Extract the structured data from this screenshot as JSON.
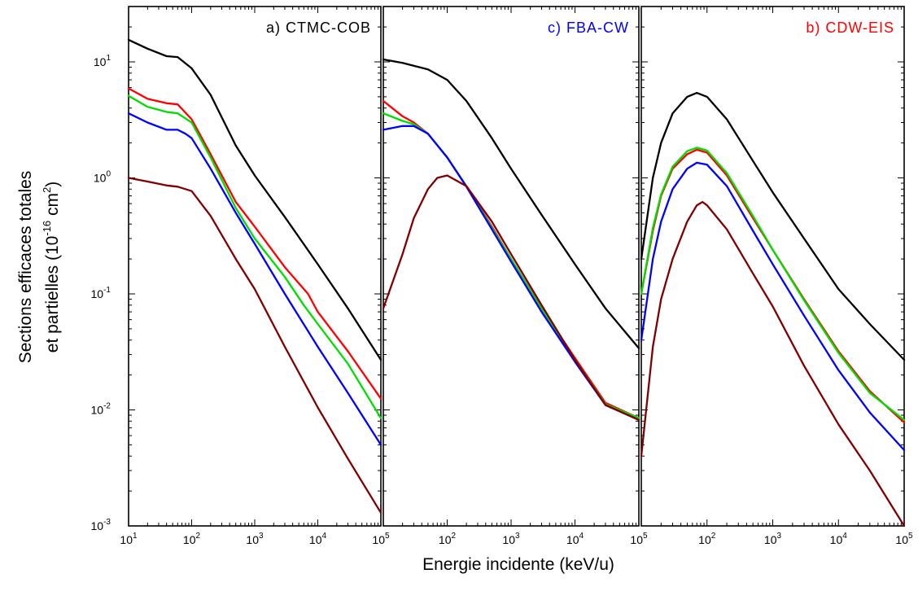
{
  "figure": {
    "xlabel": "Energie incidente (keV/u)",
    "ylabel_line1": "Sections efficaces totales",
    "ylabel_line2_prefix": "et partielles (10",
    "ylabel_line2_exp": "-16",
    "ylabel_line2_mid": " cm",
    "ylabel_line2_exp2": "2",
    "ylabel_line2_suffix": ")"
  },
  "chart_data": [
    {
      "type": "line",
      "title": "a) CTMC-COB",
      "title_color": "#000000",
      "x_scale": "log",
      "y_scale": "log",
      "xlim": [
        10,
        100000
      ],
      "ylim": [
        0.001,
        30
      ],
      "x_ticks": [
        {
          "base": "10",
          "exp": "1"
        },
        {
          "base": "10",
          "exp": "2"
        },
        {
          "base": "10",
          "exp": "3"
        },
        {
          "base": "10",
          "exp": "4"
        },
        {
          "base": "10",
          "exp": "5"
        }
      ],
      "y_ticks": [
        {
          "base": "10",
          "exp": "-3"
        },
        {
          "base": "10",
          "exp": "-2"
        },
        {
          "base": "10",
          "exp": "-1"
        },
        {
          "base": "10",
          "exp": "0"
        },
        {
          "base": "10",
          "exp": "1"
        }
      ],
      "grid": false,
      "series": [
        {
          "color": "#000000",
          "x": [
            10,
            20,
            40,
            60,
            100,
            200,
            500,
            1000,
            3000,
            10000,
            30000,
            100000
          ],
          "y": [
            15.5,
            13,
            11.2,
            11,
            8.8,
            5.2,
            1.9,
            1.05,
            0.46,
            0.18,
            0.075,
            0.027
          ]
        },
        {
          "color": "#ff0000",
          "x": [
            10,
            20,
            40,
            60,
            100,
            200,
            500,
            1000,
            3000,
            7000,
            10000,
            30000,
            100000
          ],
          "y": [
            5.9,
            4.8,
            4.4,
            4.3,
            3.2,
            1.6,
            0.62,
            0.38,
            0.17,
            0.1,
            0.07,
            0.032,
            0.0125
          ]
        },
        {
          "color": "#00dd00",
          "x": [
            10,
            20,
            40,
            60,
            100,
            200,
            500,
            1000,
            3000,
            6000,
            10000,
            30000,
            100000
          ],
          "y": [
            5.1,
            4.1,
            3.7,
            3.6,
            3.0,
            1.5,
            0.55,
            0.3,
            0.14,
            0.08,
            0.055,
            0.025,
            0.0085
          ]
        },
        {
          "color": "#0000ff",
          "x": [
            10,
            20,
            40,
            60,
            80,
            100,
            200,
            500,
            1000,
            3000,
            10000,
            30000,
            100000
          ],
          "y": [
            3.6,
            3.0,
            2.6,
            2.6,
            2.4,
            2.2,
            1.2,
            0.5,
            0.27,
            0.1,
            0.035,
            0.014,
            0.005
          ]
        },
        {
          "color": "#800000",
          "x": [
            10,
            20,
            40,
            60,
            100,
            200,
            500,
            1000,
            3000,
            10000,
            30000,
            100000
          ],
          "y": [
            1.0,
            0.93,
            0.86,
            0.84,
            0.77,
            0.47,
            0.2,
            0.11,
            0.035,
            0.0105,
            0.0038,
            0.0013
          ]
        }
      ]
    },
    {
      "type": "line",
      "title": "c) FBA-CW",
      "title_color": "#0000ff",
      "x_scale": "log",
      "y_scale": "log",
      "xlim": [
        10,
        100000
      ],
      "ylim": [
        0.001,
        30
      ],
      "x_ticks": [
        {
          "base": "",
          "exp": ""
        },
        {
          "base": "10",
          "exp": "2"
        },
        {
          "base": "10",
          "exp": "3"
        },
        {
          "base": "10",
          "exp": "4"
        },
        {
          "base": "10",
          "exp": "5"
        }
      ],
      "y_ticks": [],
      "grid": false,
      "series": [
        {
          "color": "#000000",
          "x": [
            10,
            20,
            50,
            100,
            200,
            500,
            1000,
            3000,
            10000,
            30000,
            100000
          ],
          "y": [
            10.5,
            9.8,
            8.6,
            7.0,
            4.6,
            2.2,
            1.2,
            0.48,
            0.18,
            0.075,
            0.034
          ]
        },
        {
          "color": "#ff0000",
          "x": [
            10,
            20,
            30,
            50,
            100,
            200,
            500,
            1000,
            3000,
            10000,
            30000,
            100000
          ],
          "y": [
            4.6,
            3.4,
            3.0,
            2.4,
            1.5,
            0.85,
            0.38,
            0.2,
            0.075,
            0.028,
            0.0115,
            0.0085
          ]
        },
        {
          "color": "#00dd00",
          "x": [
            10,
            20,
            30,
            50,
            100,
            200,
            500,
            1000,
            3000,
            10000,
            30000,
            100000
          ],
          "y": [
            3.6,
            3.1,
            2.9,
            2.4,
            1.5,
            0.85,
            0.37,
            0.2,
            0.074,
            0.027,
            0.0112,
            0.0085
          ]
        },
        {
          "color": "#0000ff",
          "x": [
            10,
            20,
            30,
            50,
            100,
            200,
            500,
            1000,
            3000,
            10000,
            30000,
            100000
          ],
          "y": [
            2.6,
            2.8,
            2.8,
            2.4,
            1.5,
            0.84,
            0.36,
            0.19,
            0.07,
            0.026,
            0.011,
            0.0082
          ]
        },
        {
          "color": "#800000",
          "x": [
            10,
            20,
            30,
            50,
            70,
            100,
            200,
            500,
            1000,
            3000,
            10000,
            30000,
            100000
          ],
          "y": [
            0.075,
            0.22,
            0.45,
            0.8,
            1.0,
            1.05,
            0.85,
            0.42,
            0.22,
            0.08,
            0.027,
            0.011,
            0.0082
          ]
        }
      ]
    },
    {
      "type": "line",
      "title": "b) CDW-EIS",
      "title_color": "#ff0000",
      "x_scale": "log",
      "y_scale": "log",
      "xlim": [
        10,
        100000
      ],
      "ylim": [
        0.001,
        30
      ],
      "x_ticks": [
        {
          "base": "",
          "exp": ""
        },
        {
          "base": "10",
          "exp": "2"
        },
        {
          "base": "10",
          "exp": "3"
        },
        {
          "base": "10",
          "exp": "4"
        },
        {
          "base": "10",
          "exp": "5"
        }
      ],
      "y_ticks": [],
      "grid": false,
      "series": [
        {
          "color": "#000000",
          "x": [
            10,
            15,
            20,
            30,
            50,
            70,
            100,
            200,
            500,
            1000,
            3000,
            10000,
            30000,
            100000
          ],
          "y": [
            0.2,
            1.0,
            2.0,
            3.6,
            5.0,
            5.4,
            5.0,
            3.2,
            1.4,
            0.75,
            0.3,
            0.11,
            0.055,
            0.027
          ]
        },
        {
          "color": "#ff0000",
          "x": [
            10,
            15,
            20,
            30,
            50,
            70,
            100,
            200,
            500,
            1000,
            3000,
            10000,
            30000,
            100000
          ],
          "y": [
            0.1,
            0.35,
            0.7,
            1.2,
            1.6,
            1.75,
            1.65,
            1.05,
            0.45,
            0.24,
            0.09,
            0.032,
            0.0145,
            0.0078
          ]
        },
        {
          "color": "#00dd00",
          "x": [
            10,
            15,
            20,
            30,
            50,
            70,
            100,
            200,
            500,
            1000,
            3000,
            10000,
            30000,
            100000
          ],
          "y": [
            0.1,
            0.37,
            0.72,
            1.25,
            1.7,
            1.82,
            1.72,
            1.1,
            0.47,
            0.24,
            0.088,
            0.031,
            0.014,
            0.0082
          ]
        },
        {
          "color": "#0000ff",
          "x": [
            10,
            15,
            20,
            30,
            50,
            70,
            100,
            200,
            500,
            1000,
            3000,
            10000,
            30000,
            100000
          ],
          "y": [
            0.04,
            0.2,
            0.42,
            0.8,
            1.2,
            1.35,
            1.3,
            0.85,
            0.35,
            0.18,
            0.065,
            0.022,
            0.0095,
            0.0045
          ]
        },
        {
          "color": "#800000",
          "x": [
            10,
            15,
            20,
            30,
            50,
            70,
            85,
            100,
            200,
            500,
            1000,
            3000,
            10000,
            30000,
            100000
          ],
          "y": [
            0.004,
            0.035,
            0.09,
            0.2,
            0.42,
            0.58,
            0.62,
            0.58,
            0.36,
            0.15,
            0.078,
            0.024,
            0.0075,
            0.003,
            0.001
          ]
        }
      ]
    }
  ]
}
